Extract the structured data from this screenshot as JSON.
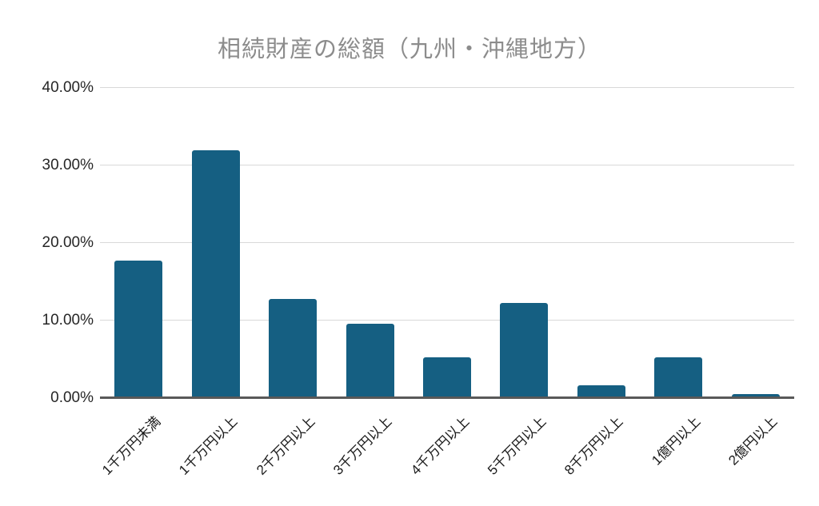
{
  "chart_data": {
    "type": "bar",
    "title": "相続財産の総額（九州・沖縄地方）",
    "categories": [
      "1千万円未満",
      "1千万円以上",
      "2千万円以上",
      "3千万円以上",
      "4千万円以上",
      "5千万円以上",
      "8千万円以上",
      "1億円以上",
      "2億円以上"
    ],
    "values": [
      17.7,
      32.0,
      12.8,
      9.6,
      5.3,
      12.3,
      1.6,
      5.3,
      0.5
    ],
    "xlabel": "",
    "ylabel": "",
    "ylim": [
      0,
      40
    ],
    "ytick_values": [
      0,
      10,
      20,
      30,
      40
    ],
    "ytick_labels": [
      "0.00%",
      "10.00%",
      "20.00%",
      "30.00%",
      "40.00%"
    ],
    "grid": true,
    "legend": false,
    "colors": {
      "bar": "#155F82",
      "gridline": "#D9D9D9",
      "axis_line": "#595959",
      "title": "#8C8C8C",
      "tick_label": "#262626",
      "background": "#FFFFFF"
    }
  }
}
